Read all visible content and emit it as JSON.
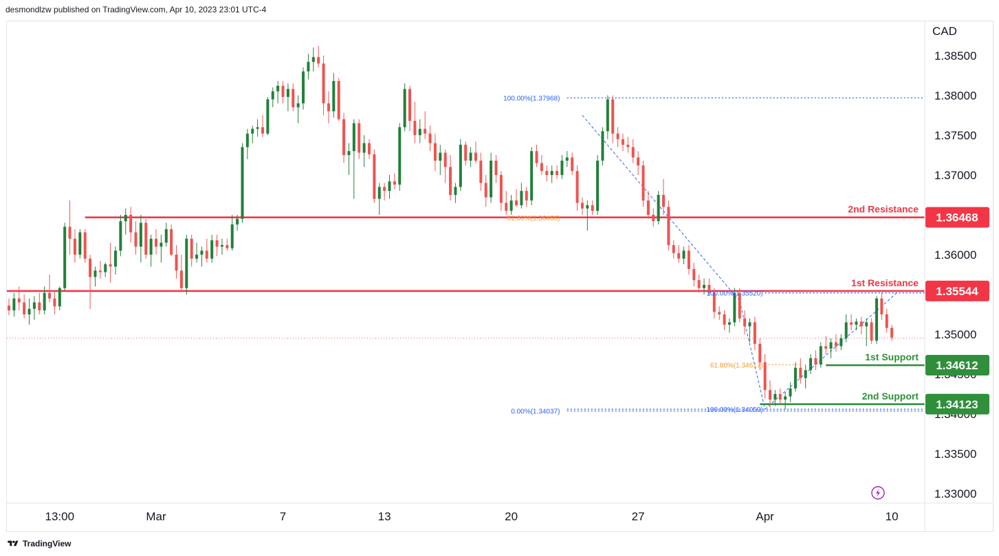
{
  "header": {
    "publisher_line": "desmondlzw published on TradingView.com, Apr 10, 2023 23:01 UTC-4"
  },
  "footer": {
    "brand": "TradingView"
  },
  "colors": {
    "up": "#22803a",
    "down": "#ef5350",
    "resistance": "#f23645",
    "support": "#2f8f3a",
    "fib_blue": "#2962ff",
    "fib_orange": "#f59a23",
    "last_price_dot": "#ef5350"
  },
  "chart_data": {
    "type": "candlestick",
    "symbol_currency": "CAD",
    "y_axis": {
      "ticks": [
        "1.38500",
        "1.38000",
        "1.37500",
        "1.37000",
        "1.36500",
        "1.36000",
        "1.35500",
        "1.35000",
        "1.34500",
        "1.34000",
        "1.33500",
        "1.33000"
      ],
      "ylim": [
        1.3288,
        1.3893
      ]
    },
    "x_axis": {
      "ticks": [
        {
          "label": "13:00",
          "index": 10
        },
        {
          "label": "Mar",
          "index": 29
        },
        {
          "label": "7",
          "index": 54
        },
        {
          "label": "13",
          "index": 74
        },
        {
          "label": "20",
          "index": 99
        },
        {
          "label": "27",
          "index": 124
        },
        {
          "label": "Apr",
          "index": 149
        },
        {
          "label": "10",
          "index": 174
        }
      ]
    },
    "levels": [
      {
        "name": "2nd Resistance",
        "value": 1.36468,
        "kind": "resistance",
        "from_index": 15
      },
      {
        "name": "1st Resistance",
        "value": 1.35544,
        "kind": "resistance",
        "from_index": 0
      },
      {
        "name": "1st Support",
        "value": 1.34612,
        "kind": "support",
        "from_index": 161
      },
      {
        "name": "2nd Support",
        "value": 1.34123,
        "kind": "support",
        "from_index": 148
      }
    ],
    "fib_labels": [
      {
        "text": "100.00%(1.37968)",
        "value": 1.37968,
        "color": "blue",
        "index": 109
      },
      {
        "text": "61.80%(1.36466)",
        "value": 1.36466,
        "color": "orange",
        "index": 109
      },
      {
        "text": "0.00%(1.34037)",
        "value": 1.34037,
        "color": "blue",
        "index": 109
      },
      {
        "text": "100.00%(1.35520)",
        "value": 1.3552,
        "color": "blue",
        "index": 149
      },
      {
        "text": "61.80%(1.34617)",
        "value": 1.34617,
        "color": "orange",
        "index": 149
      },
      {
        "text": "100.00%(1.34059)",
        "value": 1.34059,
        "color": "blue",
        "index": 149
      }
    ],
    "last_price": 1.3495,
    "candles": [
      {
        "o": 1.3536,
        "h": 1.3545,
        "l": 1.3524,
        "c": 1.353
      },
      {
        "o": 1.353,
        "h": 1.3552,
        "l": 1.3522,
        "c": 1.3545
      },
      {
        "o": 1.3545,
        "h": 1.356,
        "l": 1.353,
        "c": 1.354
      },
      {
        "o": 1.354,
        "h": 1.355,
        "l": 1.352,
        "c": 1.3525
      },
      {
        "o": 1.3525,
        "h": 1.3545,
        "l": 1.3512,
        "c": 1.3532
      },
      {
        "o": 1.3532,
        "h": 1.3548,
        "l": 1.3518,
        "c": 1.354
      },
      {
        "o": 1.354,
        "h": 1.3552,
        "l": 1.3525,
        "c": 1.353
      },
      {
        "o": 1.353,
        "h": 1.356,
        "l": 1.3525,
        "c": 1.3552
      },
      {
        "o": 1.3552,
        "h": 1.3575,
        "l": 1.354,
        "c": 1.3545
      },
      {
        "o": 1.3545,
        "h": 1.3555,
        "l": 1.3525,
        "c": 1.3535
      },
      {
        "o": 1.3535,
        "h": 1.356,
        "l": 1.353,
        "c": 1.3558
      },
      {
        "o": 1.3558,
        "h": 1.364,
        "l": 1.3555,
        "c": 1.3635
      },
      {
        "o": 1.3635,
        "h": 1.3668,
        "l": 1.36,
        "c": 1.362
      },
      {
        "o": 1.362,
        "h": 1.3632,
        "l": 1.359,
        "c": 1.36
      },
      {
        "o": 1.36,
        "h": 1.3632,
        "l": 1.3595,
        "c": 1.3628
      },
      {
        "o": 1.3628,
        "h": 1.3632,
        "l": 1.359,
        "c": 1.3595
      },
      {
        "o": 1.3595,
        "h": 1.36,
        "l": 1.3532,
        "c": 1.3572
      },
      {
        "o": 1.3572,
        "h": 1.3585,
        "l": 1.356,
        "c": 1.358
      },
      {
        "o": 1.358,
        "h": 1.3592,
        "l": 1.357,
        "c": 1.3578
      },
      {
        "o": 1.3578,
        "h": 1.359,
        "l": 1.3572,
        "c": 1.3588
      },
      {
        "o": 1.3588,
        "h": 1.3615,
        "l": 1.3565,
        "c": 1.3585
      },
      {
        "o": 1.3585,
        "h": 1.361,
        "l": 1.3575,
        "c": 1.3605
      },
      {
        "o": 1.3605,
        "h": 1.365,
        "l": 1.3598,
        "c": 1.3642
      },
      {
        "o": 1.3642,
        "h": 1.3658,
        "l": 1.3625,
        "c": 1.365
      },
      {
        "o": 1.365,
        "h": 1.366,
        "l": 1.3615,
        "c": 1.3628
      },
      {
        "o": 1.3628,
        "h": 1.3642,
        "l": 1.36,
        "c": 1.361
      },
      {
        "o": 1.361,
        "h": 1.365,
        "l": 1.359,
        "c": 1.364
      },
      {
        "o": 1.364,
        "h": 1.3645,
        "l": 1.3595,
        "c": 1.36
      },
      {
        "o": 1.36,
        "h": 1.3625,
        "l": 1.3585,
        "c": 1.362
      },
      {
        "o": 1.362,
        "h": 1.3632,
        "l": 1.36,
        "c": 1.361
      },
      {
        "o": 1.361,
        "h": 1.3625,
        "l": 1.359,
        "c": 1.3615
      },
      {
        "o": 1.3615,
        "h": 1.364,
        "l": 1.361,
        "c": 1.3632
      },
      {
        "o": 1.3632,
        "h": 1.3638,
        "l": 1.3598,
        "c": 1.36
      },
      {
        "o": 1.36,
        "h": 1.3612,
        "l": 1.357,
        "c": 1.358
      },
      {
        "o": 1.358,
        "h": 1.36,
        "l": 1.3555,
        "c": 1.3558
      },
      {
        "o": 1.3558,
        "h": 1.3625,
        "l": 1.355,
        "c": 1.362
      },
      {
        "o": 1.362,
        "h": 1.3625,
        "l": 1.3585,
        "c": 1.3595
      },
      {
        "o": 1.3595,
        "h": 1.3615,
        "l": 1.359,
        "c": 1.36
      },
      {
        "o": 1.36,
        "h": 1.361,
        "l": 1.3585,
        "c": 1.3605
      },
      {
        "o": 1.3605,
        "h": 1.362,
        "l": 1.359,
        "c": 1.3595
      },
      {
        "o": 1.3595,
        "h": 1.3625,
        "l": 1.359,
        "c": 1.3618
      },
      {
        "o": 1.3618,
        "h": 1.3625,
        "l": 1.3598,
        "c": 1.361
      },
      {
        "o": 1.361,
        "h": 1.362,
        "l": 1.36,
        "c": 1.3612
      },
      {
        "o": 1.3612,
        "h": 1.362,
        "l": 1.3605,
        "c": 1.3608
      },
      {
        "o": 1.3608,
        "h": 1.365,
        "l": 1.3605,
        "c": 1.3638
      },
      {
        "o": 1.3638,
        "h": 1.365,
        "l": 1.363,
        "c": 1.3645
      },
      {
        "o": 1.3645,
        "h": 1.374,
        "l": 1.364,
        "c": 1.3735
      },
      {
        "o": 1.3735,
        "h": 1.3758,
        "l": 1.372,
        "c": 1.3752
      },
      {
        "o": 1.3752,
        "h": 1.3762,
        "l": 1.374,
        "c": 1.3758
      },
      {
        "o": 1.3758,
        "h": 1.377,
        "l": 1.3748,
        "c": 1.376
      },
      {
        "o": 1.376,
        "h": 1.3775,
        "l": 1.3748,
        "c": 1.3752
      },
      {
        "o": 1.3752,
        "h": 1.3798,
        "l": 1.375,
        "c": 1.3795
      },
      {
        "o": 1.3795,
        "h": 1.381,
        "l": 1.3785,
        "c": 1.3805
      },
      {
        "o": 1.3805,
        "h": 1.3818,
        "l": 1.379,
        "c": 1.3812
      },
      {
        "o": 1.3812,
        "h": 1.3818,
        "l": 1.379,
        "c": 1.3798
      },
      {
        "o": 1.3798,
        "h": 1.3815,
        "l": 1.378,
        "c": 1.3808
      },
      {
        "o": 1.3808,
        "h": 1.3815,
        "l": 1.378,
        "c": 1.3785
      },
      {
        "o": 1.3785,
        "h": 1.38,
        "l": 1.3765,
        "c": 1.379
      },
      {
        "o": 1.379,
        "h": 1.3835,
        "l": 1.3782,
        "c": 1.383
      },
      {
        "o": 1.383,
        "h": 1.3852,
        "l": 1.382,
        "c": 1.3842
      },
      {
        "o": 1.3842,
        "h": 1.386,
        "l": 1.383,
        "c": 1.3848
      },
      {
        "o": 1.3848,
        "h": 1.3862,
        "l": 1.3835,
        "c": 1.384
      },
      {
        "o": 1.384,
        "h": 1.385,
        "l": 1.3775,
        "c": 1.379
      },
      {
        "o": 1.379,
        "h": 1.3805,
        "l": 1.3765,
        "c": 1.378
      },
      {
        "o": 1.378,
        "h": 1.3828,
        "l": 1.3772,
        "c": 1.3818
      },
      {
        "o": 1.3818,
        "h": 1.3822,
        "l": 1.3768,
        "c": 1.377
      },
      {
        "o": 1.377,
        "h": 1.3778,
        "l": 1.3715,
        "c": 1.3725
      },
      {
        "o": 1.3725,
        "h": 1.374,
        "l": 1.37,
        "c": 1.373
      },
      {
        "o": 1.373,
        "h": 1.377,
        "l": 1.367,
        "c": 1.3765
      },
      {
        "o": 1.3765,
        "h": 1.377,
        "l": 1.372,
        "c": 1.3728
      },
      {
        "o": 1.3728,
        "h": 1.375,
        "l": 1.371,
        "c": 1.374
      },
      {
        "o": 1.374,
        "h": 1.3745,
        "l": 1.372,
        "c": 1.3726
      },
      {
        "o": 1.3726,
        "h": 1.3732,
        "l": 1.3665,
        "c": 1.367
      },
      {
        "o": 1.367,
        "h": 1.369,
        "l": 1.365,
        "c": 1.3685
      },
      {
        "o": 1.3685,
        "h": 1.369,
        "l": 1.3668,
        "c": 1.368
      },
      {
        "o": 1.368,
        "h": 1.37,
        "l": 1.367,
        "c": 1.3692
      },
      {
        "o": 1.3692,
        "h": 1.3702,
        "l": 1.3682,
        "c": 1.3688
      },
      {
        "o": 1.3688,
        "h": 1.3765,
        "l": 1.368,
        "c": 1.376
      },
      {
        "o": 1.376,
        "h": 1.3815,
        "l": 1.3755,
        "c": 1.3808
      },
      {
        "o": 1.3808,
        "h": 1.3812,
        "l": 1.3755,
        "c": 1.3768
      },
      {
        "o": 1.3768,
        "h": 1.3792,
        "l": 1.374,
        "c": 1.375
      },
      {
        "o": 1.375,
        "h": 1.377,
        "l": 1.374,
        "c": 1.3758
      },
      {
        "o": 1.3758,
        "h": 1.378,
        "l": 1.3745,
        "c": 1.3752
      },
      {
        "o": 1.3752,
        "h": 1.3762,
        "l": 1.373,
        "c": 1.374
      },
      {
        "o": 1.374,
        "h": 1.3752,
        "l": 1.3705,
        "c": 1.3718
      },
      {
        "o": 1.3718,
        "h": 1.3738,
        "l": 1.37,
        "c": 1.3728
      },
      {
        "o": 1.3728,
        "h": 1.3732,
        "l": 1.369,
        "c": 1.371
      },
      {
        "o": 1.371,
        "h": 1.3725,
        "l": 1.3668,
        "c": 1.3675
      },
      {
        "o": 1.3675,
        "h": 1.369,
        "l": 1.3665,
        "c": 1.3685
      },
      {
        "o": 1.3685,
        "h": 1.3745,
        "l": 1.368,
        "c": 1.3738
      },
      {
        "o": 1.3738,
        "h": 1.3742,
        "l": 1.3712,
        "c": 1.3718
      },
      {
        "o": 1.3718,
        "h": 1.3735,
        "l": 1.371,
        "c": 1.3728
      },
      {
        "o": 1.3728,
        "h": 1.3742,
        "l": 1.3715,
        "c": 1.3718
      },
      {
        "o": 1.3718,
        "h": 1.3728,
        "l": 1.368,
        "c": 1.369
      },
      {
        "o": 1.369,
        "h": 1.37,
        "l": 1.366,
        "c": 1.3672
      },
      {
        "o": 1.3672,
        "h": 1.3728,
        "l": 1.3665,
        "c": 1.3718
      },
      {
        "o": 1.3718,
        "h": 1.3725,
        "l": 1.369,
        "c": 1.37
      },
      {
        "o": 1.37,
        "h": 1.3705,
        "l": 1.3655,
        "c": 1.3665
      },
      {
        "o": 1.3665,
        "h": 1.368,
        "l": 1.365,
        "c": 1.3655
      },
      {
        "o": 1.3655,
        "h": 1.3675,
        "l": 1.365,
        "c": 1.3668
      },
      {
        "o": 1.3668,
        "h": 1.3682,
        "l": 1.366,
        "c": 1.3662
      },
      {
        "o": 1.3662,
        "h": 1.369,
        "l": 1.3658,
        "c": 1.368
      },
      {
        "o": 1.368,
        "h": 1.3685,
        "l": 1.366,
        "c": 1.3668
      },
      {
        "o": 1.3668,
        "h": 1.3735,
        "l": 1.3662,
        "c": 1.373
      },
      {
        "o": 1.373,
        "h": 1.3738,
        "l": 1.371,
        "c": 1.3715
      },
      {
        "o": 1.3715,
        "h": 1.3725,
        "l": 1.37,
        "c": 1.3705
      },
      {
        "o": 1.3705,
        "h": 1.3712,
        "l": 1.3692,
        "c": 1.37
      },
      {
        "o": 1.37,
        "h": 1.3712,
        "l": 1.369,
        "c": 1.3705
      },
      {
        "o": 1.3705,
        "h": 1.3712,
        "l": 1.3695,
        "c": 1.37
      },
      {
        "o": 1.37,
        "h": 1.3725,
        "l": 1.3695,
        "c": 1.3718
      },
      {
        "o": 1.3718,
        "h": 1.373,
        "l": 1.371,
        "c": 1.3722
      },
      {
        "o": 1.3722,
        "h": 1.3728,
        "l": 1.37,
        "c": 1.3705
      },
      {
        "o": 1.3705,
        "h": 1.3712,
        "l": 1.3655,
        "c": 1.3665
      },
      {
        "o": 1.3665,
        "h": 1.3672,
        "l": 1.365,
        "c": 1.3658
      },
      {
        "o": 1.3658,
        "h": 1.3668,
        "l": 1.363,
        "c": 1.3662
      },
      {
        "o": 1.3662,
        "h": 1.3668,
        "l": 1.365,
        "c": 1.3655
      },
      {
        "o": 1.3655,
        "h": 1.3725,
        "l": 1.365,
        "c": 1.3718
      },
      {
        "o": 1.3718,
        "h": 1.376,
        "l": 1.3712,
        "c": 1.3755
      },
      {
        "o": 1.3755,
        "h": 1.38,
        "l": 1.3745,
        "c": 1.3795
      },
      {
        "o": 1.3795,
        "h": 1.38,
        "l": 1.374,
        "c": 1.3752
      },
      {
        "o": 1.3752,
        "h": 1.376,
        "l": 1.3735,
        "c": 1.3745
      },
      {
        "o": 1.3745,
        "h": 1.3752,
        "l": 1.373,
        "c": 1.3738
      },
      {
        "o": 1.3738,
        "h": 1.3748,
        "l": 1.3728,
        "c": 1.3735
      },
      {
        "o": 1.3735,
        "h": 1.3745,
        "l": 1.3715,
        "c": 1.3722
      },
      {
        "o": 1.3722,
        "h": 1.373,
        "l": 1.37,
        "c": 1.3712
      },
      {
        "o": 1.3712,
        "h": 1.3718,
        "l": 1.366,
        "c": 1.3668
      },
      {
        "o": 1.3668,
        "h": 1.368,
        "l": 1.3645,
        "c": 1.365
      },
      {
        "o": 1.365,
        "h": 1.3658,
        "l": 1.3635,
        "c": 1.3642
      },
      {
        "o": 1.3642,
        "h": 1.368,
        "l": 1.3638,
        "c": 1.3675
      },
      {
        "o": 1.3675,
        "h": 1.3695,
        "l": 1.365,
        "c": 1.366
      },
      {
        "o": 1.366,
        "h": 1.3668,
        "l": 1.3605,
        "c": 1.3612
      },
      {
        "o": 1.3612,
        "h": 1.3618,
        "l": 1.3595,
        "c": 1.3602
      },
      {
        "o": 1.3602,
        "h": 1.3612,
        "l": 1.359,
        "c": 1.3595
      },
      {
        "o": 1.3595,
        "h": 1.361,
        "l": 1.3588,
        "c": 1.3605
      },
      {
        "o": 1.3605,
        "h": 1.3612,
        "l": 1.3575,
        "c": 1.3582
      },
      {
        "o": 1.3582,
        "h": 1.359,
        "l": 1.356,
        "c": 1.3568
      },
      {
        "o": 1.3568,
        "h": 1.3575,
        "l": 1.3552,
        "c": 1.3558
      },
      {
        "o": 1.3558,
        "h": 1.357,
        "l": 1.355,
        "c": 1.3562
      },
      {
        "o": 1.3562,
        "h": 1.357,
        "l": 1.3548,
        "c": 1.3552
      },
      {
        "o": 1.3552,
        "h": 1.3558,
        "l": 1.352,
        "c": 1.3528
      },
      {
        "o": 1.3528,
        "h": 1.3535,
        "l": 1.3518,
        "c": 1.3525
      },
      {
        "o": 1.3525,
        "h": 1.353,
        "l": 1.3505,
        "c": 1.3512
      },
      {
        "o": 1.3512,
        "h": 1.352,
        "l": 1.3502,
        "c": 1.3515
      },
      {
        "o": 1.3515,
        "h": 1.3558,
        "l": 1.351,
        "c": 1.3552
      },
      {
        "o": 1.3552,
        "h": 1.3558,
        "l": 1.3515,
        "c": 1.352
      },
      {
        "o": 1.352,
        "h": 1.353,
        "l": 1.35,
        "c": 1.351
      },
      {
        "o": 1.351,
        "h": 1.352,
        "l": 1.349,
        "c": 1.3515
      },
      {
        "o": 1.3515,
        "h": 1.3522,
        "l": 1.348,
        "c": 1.3488
      },
      {
        "o": 1.3488,
        "h": 1.3495,
        "l": 1.3455,
        "c": 1.3465
      },
      {
        "o": 1.3465,
        "h": 1.3475,
        "l": 1.342,
        "c": 1.343
      },
      {
        "o": 1.343,
        "h": 1.3442,
        "l": 1.3408,
        "c": 1.3418
      },
      {
        "o": 1.3418,
        "h": 1.343,
        "l": 1.341,
        "c": 1.3425
      },
      {
        "o": 1.3425,
        "h": 1.3432,
        "l": 1.3412,
        "c": 1.3418
      },
      {
        "o": 1.3418,
        "h": 1.3428,
        "l": 1.3406,
        "c": 1.3422
      },
      {
        "o": 1.3422,
        "h": 1.344,
        "l": 1.3415,
        "c": 1.3432
      },
      {
        "o": 1.3432,
        "h": 1.3465,
        "l": 1.3428,
        "c": 1.3458
      },
      {
        "o": 1.3458,
        "h": 1.347,
        "l": 1.3438,
        "c": 1.3445
      },
      {
        "o": 1.3445,
        "h": 1.3462,
        "l": 1.3432,
        "c": 1.3455
      },
      {
        "o": 1.3455,
        "h": 1.3475,
        "l": 1.345,
        "c": 1.347
      },
      {
        "o": 1.347,
        "h": 1.348,
        "l": 1.3455,
        "c": 1.3462
      },
      {
        "o": 1.3462,
        "h": 1.349,
        "l": 1.3458,
        "c": 1.3485
      },
      {
        "o": 1.3485,
        "h": 1.3498,
        "l": 1.3475,
        "c": 1.3482
      },
      {
        "o": 1.3482,
        "h": 1.3495,
        "l": 1.347,
        "c": 1.349
      },
      {
        "o": 1.349,
        "h": 1.35,
        "l": 1.3478,
        "c": 1.3485
      },
      {
        "o": 1.3485,
        "h": 1.35,
        "l": 1.348,
        "c": 1.3495
      },
      {
        "o": 1.3495,
        "h": 1.3525,
        "l": 1.349,
        "c": 1.3515
      },
      {
        "o": 1.3515,
        "h": 1.3525,
        "l": 1.3505,
        "c": 1.3512
      },
      {
        "o": 1.3512,
        "h": 1.352,
        "l": 1.3505,
        "c": 1.3516
      },
      {
        "o": 1.3516,
        "h": 1.3522,
        "l": 1.35,
        "c": 1.351
      },
      {
        "o": 1.351,
        "h": 1.352,
        "l": 1.3485,
        "c": 1.3515
      },
      {
        "o": 1.3515,
        "h": 1.352,
        "l": 1.3488,
        "c": 1.3492
      },
      {
        "o": 1.3492,
        "h": 1.3548,
        "l": 1.3488,
        "c": 1.3545
      },
      {
        "o": 1.3545,
        "h": 1.3552,
        "l": 1.3518,
        "c": 1.3525
      },
      {
        "o": 1.3525,
        "h": 1.3532,
        "l": 1.3502,
        "c": 1.3508
      },
      {
        "o": 1.3508,
        "h": 1.3512,
        "l": 1.3492,
        "c": 1.3496
      }
    ]
  }
}
